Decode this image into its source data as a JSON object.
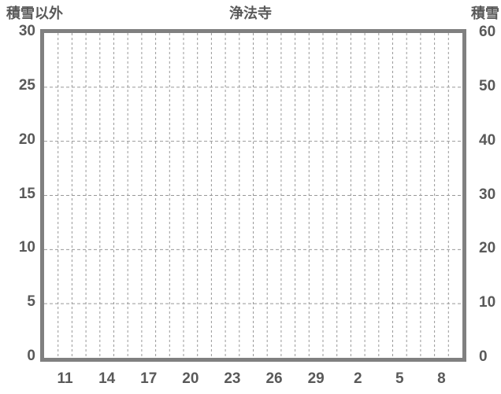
{
  "chart_data": {
    "type": "line",
    "title": "浄法寺",
    "series": [],
    "left_axis": {
      "label": "積雪以外",
      "min": 0,
      "max": 30,
      "ticks": [
        30,
        25,
        20,
        15,
        10,
        5,
        0
      ]
    },
    "right_axis": {
      "label": "積雪",
      "min": 0,
      "max": 60,
      "ticks": [
        60,
        50,
        40,
        30,
        20,
        10,
        0
      ]
    },
    "x_axis": {
      "labels": [
        "11",
        "14",
        "17",
        "20",
        "23",
        "26",
        "29",
        "2",
        "5",
        "8"
      ],
      "labeled_cells": [
        1,
        4,
        7,
        10,
        13,
        16,
        19,
        22,
        25,
        28
      ],
      "num_cells": 30
    },
    "grid": {
      "vertical": "dashed, one line per day cell boundary",
      "horizontal_every_units": 5,
      "style": "dashed"
    },
    "colors": {
      "border": "#808080",
      "grid": "#999999",
      "text": "#595959",
      "background": "#ffffff"
    }
  }
}
